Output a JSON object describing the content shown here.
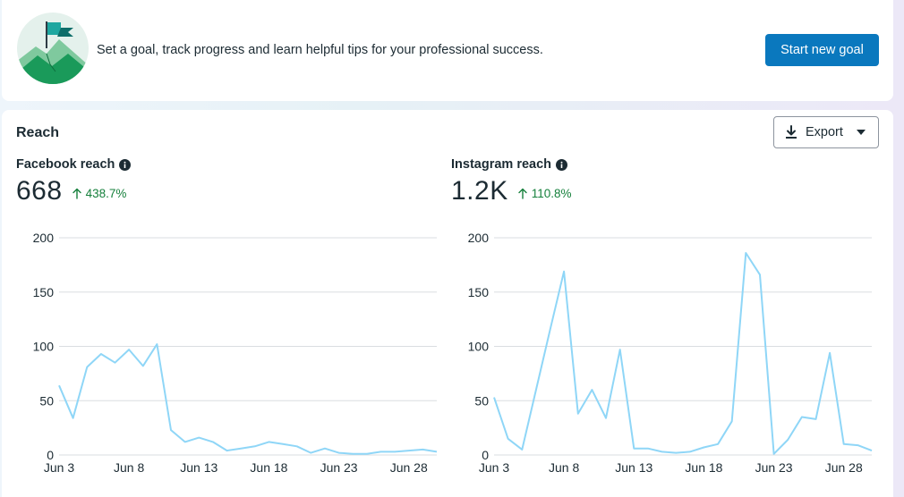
{
  "goal_banner": {
    "text": "Set a goal, track progress and learn helpful tips for your professional success.",
    "button_label": "Start new goal",
    "illustration_icon": "mountain-flag-icon"
  },
  "reach": {
    "title": "Reach",
    "export_label": "Export",
    "facebook": {
      "label": "Facebook reach",
      "value": "668",
      "change": "438.7%"
    },
    "instagram": {
      "label": "Instagram reach",
      "value": "1.2K",
      "change": "110.8%"
    }
  },
  "colors": {
    "line": "#8fd6f7",
    "grid": "#dadde1",
    "positive": "#16803c",
    "primary_button": "#0a78be"
  },
  "chart_data": [
    {
      "type": "line",
      "title": "",
      "x": [
        "Jun 3",
        "Jun 4",
        "Jun 5",
        "Jun 6",
        "Jun 7",
        "Jun 8",
        "Jun 9",
        "Jun 10",
        "Jun 11",
        "Jun 12",
        "Jun 13",
        "Jun 14",
        "Jun 15",
        "Jun 16",
        "Jun 17",
        "Jun 18",
        "Jun 19",
        "Jun 20",
        "Jun 21",
        "Jun 22",
        "Jun 23",
        "Jun 24",
        "Jun 25",
        "Jun 26",
        "Jun 27",
        "Jun 28",
        "Jun 29",
        "Jun 30"
      ],
      "x_tick_labels": [
        "Jun 3",
        "Jun 8",
        "Jun 13",
        "Jun 18",
        "Jun 23",
        "Jun 28"
      ],
      "x_tick_index": [
        0,
        5,
        10,
        15,
        20,
        25
      ],
      "series": [
        {
          "values": [
            64,
            34,
            81,
            93,
            85,
            97,
            82,
            102,
            23,
            12,
            16,
            12,
            4,
            6,
            8,
            12,
            10,
            8,
            2,
            6,
            2,
            1,
            1,
            3,
            3,
            4,
            5,
            3
          ]
        }
      ],
      "yticks": [
        0,
        50,
        100,
        150,
        200
      ],
      "ylim": [
        0,
        200
      ],
      "grid": true
    },
    {
      "type": "line",
      "title": "",
      "x": [
        "Jun 3",
        "Jun 4",
        "Jun 5",
        "Jun 6",
        "Jun 7",
        "Jun 8",
        "Jun 9",
        "Jun 10",
        "Jun 11",
        "Jun 12",
        "Jun 13",
        "Jun 14",
        "Jun 15",
        "Jun 16",
        "Jun 17",
        "Jun 18",
        "Jun 19",
        "Jun 20",
        "Jun 21",
        "Jun 22",
        "Jun 23",
        "Jun 24",
        "Jun 25",
        "Jun 26",
        "Jun 27",
        "Jun 28",
        "Jun 29",
        "Jun 30"
      ],
      "x_tick_labels": [
        "Jun 3",
        "Jun 8",
        "Jun 13",
        "Jun 18",
        "Jun 23",
        "Jun 28"
      ],
      "x_tick_index": [
        0,
        5,
        10,
        15,
        20,
        25
      ],
      "series": [
        {
          "values": [
            53,
            15,
            5,
            60,
            115,
            169,
            38,
            60,
            34,
            97,
            6,
            6,
            3,
            2,
            3,
            7,
            10,
            31,
            186,
            166,
            1,
            14,
            35,
            33,
            94,
            10,
            9,
            4
          ]
        }
      ],
      "yticks": [
        0,
        50,
        100,
        150,
        200
      ],
      "ylim": [
        0,
        200
      ],
      "grid": true
    }
  ]
}
